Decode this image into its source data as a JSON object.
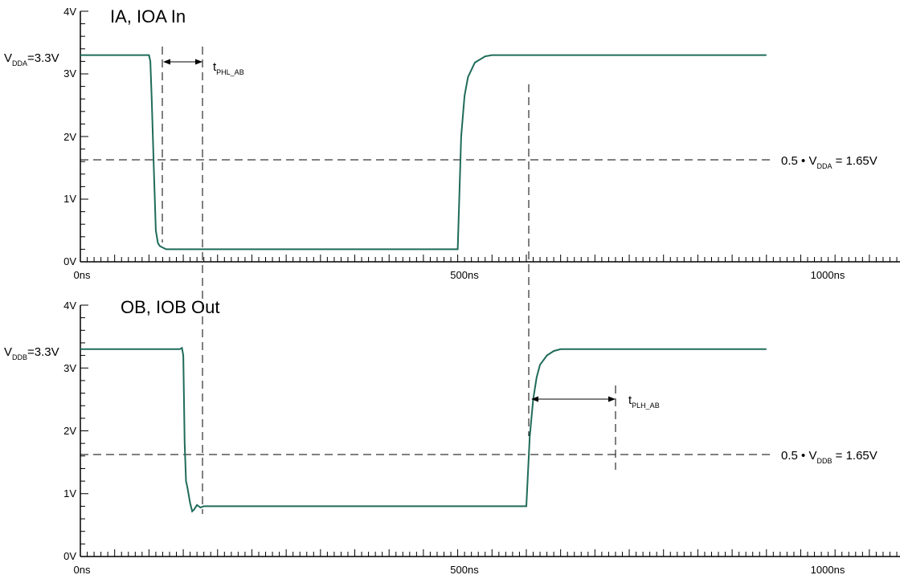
{
  "colors": {
    "trace": "#1f6b5a",
    "axis": "#000000",
    "guide": "#000000"
  },
  "chart_data": [
    {
      "type": "line",
      "title": "IA, IOA  In",
      "xlim": [
        0,
        1120
      ],
      "ylim": [
        0,
        4
      ],
      "x_ticks": [
        {
          "v": 0,
          "label": "0ns"
        },
        {
          "v": 500,
          "label": "500ns"
        },
        {
          "v": 1000,
          "label": "1000ns"
        }
      ],
      "y_ticks": [
        {
          "v": 0,
          "label": "0V"
        },
        {
          "v": 1,
          "label": "1V"
        },
        {
          "v": 2,
          "label": "2V"
        },
        {
          "v": 3,
          "label": "3V"
        },
        {
          "v": 4,
          "label": "4V"
        }
      ],
      "series": [
        {
          "x": [
            0,
            100,
            102,
            104,
            107,
            110,
            113,
            116,
            125,
            150,
            550,
            555,
            560,
            565,
            575,
            590,
            600,
            620,
            660,
            1000
          ],
          "y": [
            3.3,
            3.3,
            3.2,
            2.6,
            1.5,
            0.5,
            0.3,
            0.25,
            0.2,
            0.2,
            0.2,
            2.0,
            2.65,
            2.95,
            3.18,
            3.28,
            3.3,
            3.3,
            3.3,
            3.3
          ]
        }
      ],
      "guide_level": 1.65,
      "annotations": {
        "vdd": {
          "main": "V",
          "sub": "DDA",
          "rest": "=3.3V"
        },
        "half": {
          "lead": "0.5 • V",
          "sub": "DDA",
          "rest": " = 1.65V"
        },
        "delay": {
          "main": "t",
          "sub": "PHL_AB"
        }
      }
    },
    {
      "type": "line",
      "title": "OB, IOB  Out",
      "xlim": [
        0,
        1120
      ],
      "ylim": [
        0,
        4
      ],
      "x_ticks": [
        {
          "v": 0,
          "label": "0ns"
        },
        {
          "v": 500,
          "label": "500ns"
        },
        {
          "v": 1000,
          "label": "1000ns"
        }
      ],
      "y_ticks": [
        {
          "v": 0,
          "label": "0V"
        },
        {
          "v": 1,
          "label": "1V"
        },
        {
          "v": 2,
          "label": "2V"
        },
        {
          "v": 3,
          "label": "3V"
        },
        {
          "v": 4,
          "label": "4V"
        }
      ],
      "series": [
        {
          "x": [
            0,
            145,
            148,
            150,
            152,
            154,
            156,
            160,
            163,
            166,
            170,
            175,
            180,
            185,
            190,
            200,
            650,
            655,
            660,
            665,
            670,
            680,
            690,
            700,
            720,
            1000
          ],
          "y": [
            3.3,
            3.3,
            3.32,
            3.2,
            1.8,
            1.2,
            1.1,
            0.85,
            0.72,
            0.75,
            0.82,
            0.78,
            0.8,
            0.8,
            0.8,
            0.8,
            0.8,
            1.9,
            2.5,
            2.85,
            3.05,
            3.2,
            3.27,
            3.3,
            3.3,
            3.3
          ]
        }
      ],
      "guide_level": 1.65,
      "annotations": {
        "vdd": {
          "main": "V",
          "sub": "DDB",
          "rest": "=3.3V"
        },
        "half": {
          "lead": "0.5 • V",
          "sub": "DDB",
          "rest": " = 1.65V"
        },
        "delay": {
          "main": "t",
          "sub": "PLH_AB"
        }
      }
    }
  ]
}
